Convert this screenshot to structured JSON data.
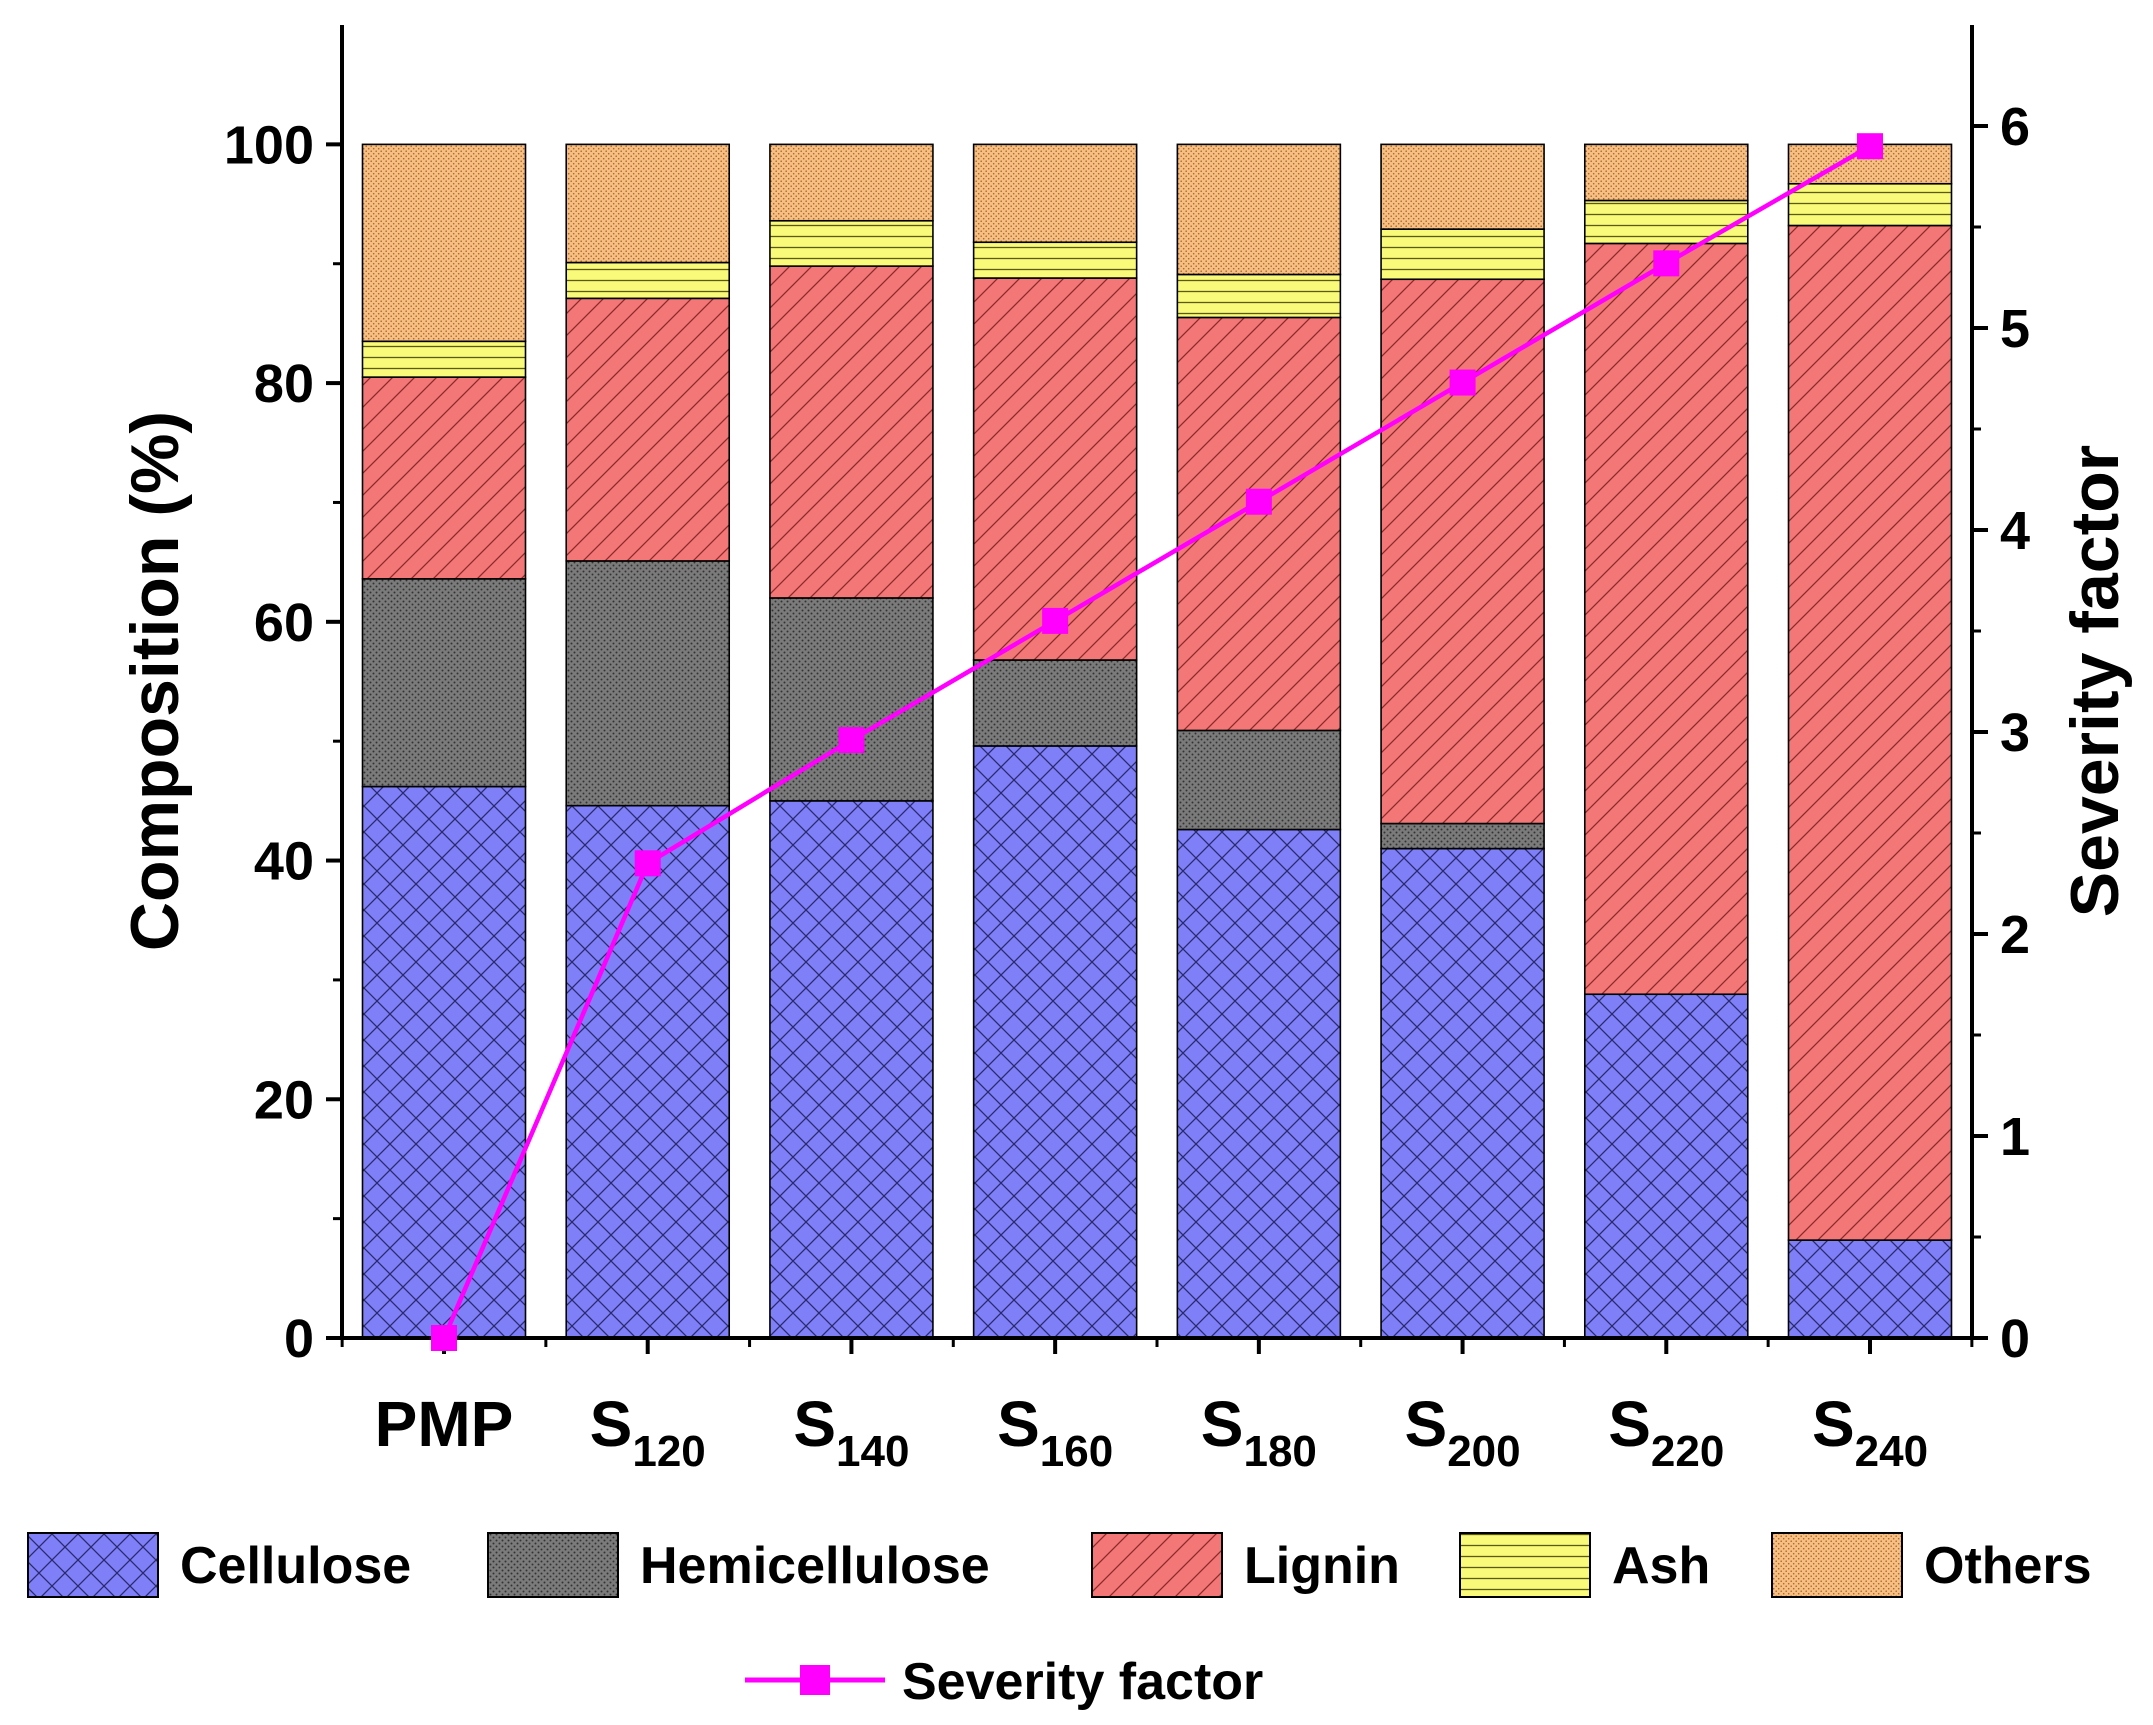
{
  "chart_data": {
    "type": "bar",
    "stacked": true,
    "title": "",
    "ylabel": "Composition (%)",
    "y2label": "Severity factor",
    "ylim": [
      0,
      110
    ],
    "y2lim": [
      0,
      6.5
    ],
    "yticks": [
      0,
      20,
      40,
      60,
      80,
      100
    ],
    "y2ticks": [
      0,
      1,
      2,
      3,
      4,
      5,
      6
    ],
    "categories": [
      {
        "main": "PMP",
        "sub": ""
      },
      {
        "main": "S",
        "sub": "120"
      },
      {
        "main": "S",
        "sub": "140"
      },
      {
        "main": "S",
        "sub": "160"
      },
      {
        "main": "S",
        "sub": "180"
      },
      {
        "main": "S",
        "sub": "200"
      },
      {
        "main": "S",
        "sub": "220"
      },
      {
        "main": "S",
        "sub": "240"
      }
    ],
    "series": [
      {
        "name": "Cellulose",
        "color": "#7f7ff7",
        "pattern": "crosshatch",
        "values": [
          46.2,
          44.6,
          45.0,
          49.6,
          42.6,
          41.0,
          28.8,
          8.2
        ]
      },
      {
        "name": "Hemicellulose",
        "color": "#7b7b7b",
        "pattern": "dots",
        "values": [
          17.4,
          20.5,
          17.0,
          7.2,
          8.3,
          2.1,
          0,
          0
        ]
      },
      {
        "name": "Lignin",
        "color": "#f47777",
        "pattern": "diagonal",
        "values": [
          16.9,
          22.0,
          27.8,
          32.0,
          34.6,
          45.6,
          62.9,
          85.0
        ]
      },
      {
        "name": "Ash",
        "color": "#fafa7a",
        "pattern": "horizontal",
        "values": [
          3.0,
          3.0,
          3.8,
          3.0,
          3.6,
          4.2,
          3.6,
          3.5
        ]
      },
      {
        "name": "Others",
        "color": "#f7bf83",
        "pattern": "finedots",
        "values": [
          16.5,
          9.9,
          6.4,
          8.2,
          10.9,
          7.1,
          4.7,
          3.3
        ]
      }
    ],
    "line_series": {
      "name": "Severity factor",
      "color": "#ff00ff",
      "axis": "right",
      "values": [
        0.0,
        2.35,
        2.96,
        3.55,
        4.14,
        4.73,
        5.32,
        5.9
      ]
    },
    "legend_position": "bottom"
  }
}
